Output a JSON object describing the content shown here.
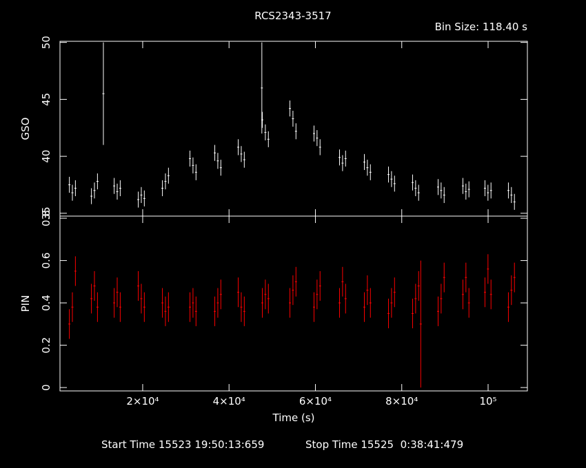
{
  "page": {
    "title": "RCS2343-3517",
    "bin_size": "Bin Size: 118.40 s",
    "start_time": "Start Time 15523 19:50:13:659",
    "stop_time": "Stop Time 15525  0:38:41:479"
  },
  "chart_data": [
    {
      "type": "errorbar",
      "ylabel": "GSO",
      "color": "#ffffff",
      "x": [
        3020,
        3720,
        4420,
        8130,
        8830,
        9530,
        10900,
        13400,
        14100,
        14800,
        18980,
        19680,
        20380,
        24570,
        25270,
        25970,
        30950,
        31650,
        32350,
        36700,
        37400,
        38100,
        42130,
        42830,
        43530,
        47600,
        47710,
        48410,
        49110,
        54100,
        54800,
        55500,
        59680,
        60380,
        61080,
        65590,
        66290,
        66990,
        71340,
        72040,
        72740,
        76930,
        77630,
        78330,
        82510,
        83210,
        83910,
        88420,
        89120,
        89820,
        94160,
        94860,
        95560,
        99270,
        99970,
        100670,
        104700,
        105400,
        106100
      ],
      "values": [
        37.5,
        36.8,
        37.2,
        36.5,
        37.0,
        37.8,
        45.5,
        37.4,
        36.9,
        37.2,
        36.2,
        36.6,
        36.3,
        37.2,
        37.8,
        38.3,
        39.8,
        39.2,
        38.6,
        40.3,
        39.6,
        39.0,
        40.8,
        40.2,
        39.7,
        46.0,
        43.2,
        42.1,
        41.5,
        44.2,
        43.3,
        42.2,
        42.0,
        41.6,
        40.8,
        39.9,
        39.4,
        39.8,
        39.5,
        39.0,
        38.6,
        38.4,
        38.0,
        37.6,
        37.7,
        37.2,
        36.8,
        37.3,
        37.0,
        36.6,
        37.4,
        36.9,
        37.1,
        37.2,
        36.8,
        37.0,
        37.0,
        36.6,
        36.0
      ],
      "errors": [
        0.7,
        0.7,
        0.7,
        0.7,
        0.7,
        0.7,
        4.5,
        0.7,
        0.7,
        0.7,
        0.7,
        0.7,
        0.7,
        0.7,
        0.7,
        0.7,
        0.7,
        0.7,
        0.7,
        0.7,
        0.7,
        0.7,
        0.7,
        0.7,
        0.7,
        4.0,
        0.7,
        0.7,
        0.7,
        0.7,
        0.7,
        0.7,
        0.7,
        0.7,
        0.7,
        0.7,
        0.7,
        0.7,
        0.7,
        0.7,
        0.7,
        0.7,
        0.7,
        0.7,
        0.7,
        0.7,
        0.7,
        0.7,
        0.7,
        0.7,
        0.7,
        0.7,
        0.7,
        0.7,
        0.7,
        0.7,
        0.7,
        0.7,
        0.7
      ],
      "xlim": [
        846,
        109100
      ],
      "ylim": [
        34.75,
        50.1
      ],
      "yticks": [
        35,
        40,
        45,
        50
      ],
      "xticks": [
        {
          "value": 20000,
          "label": "2×10⁴"
        },
        {
          "value": 40000,
          "label": "4×10⁴"
        },
        {
          "value": 60000,
          "label": "6×10⁴"
        },
        {
          "value": 80000,
          "label": "8×10⁴"
        },
        {
          "value": 100000,
          "label": "10⁵"
        }
      ]
    },
    {
      "type": "errorbar",
      "ylabel": "PIN",
      "xlabel": "Time (s)",
      "color": "#ff0000",
      "x": [
        3020,
        3720,
        4420,
        8130,
        8830,
        9530,
        13400,
        14100,
        14800,
        18980,
        19680,
        20380,
        24570,
        25270,
        25970,
        30950,
        31650,
        32350,
        36700,
        37400,
        38100,
        42130,
        42830,
        43530,
        47710,
        48410,
        49110,
        54100,
        54800,
        55500,
        59680,
        60380,
        61080,
        65590,
        66290,
        66990,
        71340,
        72040,
        72740,
        76930,
        77630,
        78330,
        82510,
        83210,
        83910,
        84400,
        88420,
        89120,
        89820,
        94160,
        94860,
        95560,
        99270,
        99970,
        100670,
        104700,
        105400,
        106100
      ],
      "values": [
        0.3,
        0.38,
        0.55,
        0.42,
        0.48,
        0.38,
        0.4,
        0.45,
        0.38,
        0.48,
        0.42,
        0.38,
        0.4,
        0.36,
        0.38,
        0.38,
        0.4,
        0.36,
        0.36,
        0.4,
        0.44,
        0.45,
        0.38,
        0.36,
        0.4,
        0.44,
        0.42,
        0.4,
        0.46,
        0.5,
        0.38,
        0.44,
        0.48,
        0.4,
        0.5,
        0.42,
        0.38,
        0.46,
        0.4,
        0.35,
        0.4,
        0.45,
        0.35,
        0.42,
        0.48,
        0.3,
        0.36,
        0.42,
        0.52,
        0.44,
        0.52,
        0.4,
        0.45,
        0.56,
        0.44,
        0.38,
        0.46,
        0.52
      ],
      "errors": [
        0.07,
        0.07,
        0.07,
        0.07,
        0.07,
        0.07,
        0.07,
        0.07,
        0.07,
        0.07,
        0.07,
        0.07,
        0.07,
        0.07,
        0.07,
        0.07,
        0.07,
        0.07,
        0.07,
        0.07,
        0.07,
        0.07,
        0.07,
        0.07,
        0.07,
        0.07,
        0.07,
        0.07,
        0.07,
        0.07,
        0.07,
        0.07,
        0.07,
        0.07,
        0.07,
        0.07,
        0.07,
        0.07,
        0.07,
        0.07,
        0.07,
        0.07,
        0.07,
        0.07,
        0.07,
        0.3,
        0.07,
        0.07,
        0.07,
        0.07,
        0.07,
        0.07,
        0.07,
        0.07,
        0.07,
        0.07,
        0.07,
        0.07
      ],
      "xlim": [
        846,
        109100
      ],
      "ylim": [
        -0.016,
        0.81
      ],
      "yticks": [
        0,
        0.2,
        0.4,
        0.6,
        0.8
      ],
      "xticks": [
        {
          "value": 20000,
          "label": "2×10⁴"
        },
        {
          "value": 40000,
          "label": "4×10⁴"
        },
        {
          "value": 60000,
          "label": "6×10⁴"
        },
        {
          "value": 80000,
          "label": "8×10⁴"
        },
        {
          "value": 100000,
          "label": "10⁵"
        }
      ]
    }
  ]
}
